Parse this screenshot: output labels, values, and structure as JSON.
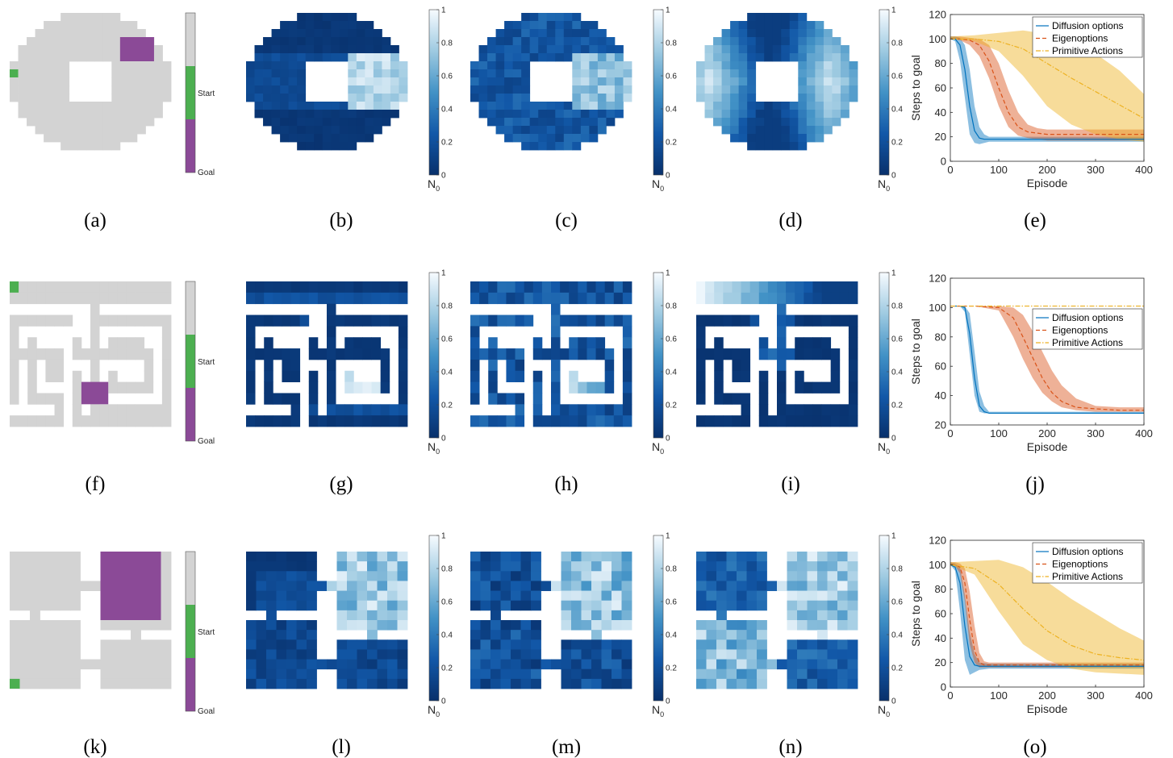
{
  "colors": {
    "wall": "#ffffff",
    "free": "#d3d3d3",
    "start": "#4caf50",
    "goal": "#8b4a97",
    "diffusion": "#0072bd",
    "eigen": "#d95319",
    "primitive": "#edb120"
  },
  "colorbar_label": "N",
  "colorbar_sub": "0",
  "legend_labels": {
    "start": "Start",
    "goal": "Goal"
  },
  "rows": [
    {
      "env": "ring",
      "captions": [
        "(a)",
        "(b)",
        "(c)",
        "(d)",
        "(e)"
      ]
    },
    {
      "env": "maze",
      "captions": [
        "(f)",
        "(g)",
        "(h)",
        "(i)",
        "(j)"
      ]
    },
    {
      "env": "rooms",
      "captions": [
        "(k)",
        "(l)",
        "(m)",
        "(n)",
        "(o)"
      ]
    }
  ],
  "chart_data": [
    {
      "type": "line",
      "xlabel": "Episode",
      "ylabel": "Steps to goal",
      "xlim": [
        0,
        400
      ],
      "ylim": [
        0,
        120
      ],
      "xticks": [
        0,
        100,
        200,
        300,
        400
      ],
      "yticks": [
        0,
        20,
        40,
        60,
        80,
        100,
        120
      ],
      "legend_position": "top-right",
      "series": [
        {
          "name": "Diffusion options",
          "style": "solid",
          "x": [
            0,
            10,
            20,
            30,
            40,
            50,
            60,
            70,
            80,
            100,
            150,
            200,
            300,
            400
          ],
          "y": [
            100,
            100,
            95,
            75,
            45,
            25,
            19,
            18,
            18,
            18,
            18,
            18,
            18,
            18
          ],
          "lower": [
            100,
            98,
            82,
            52,
            22,
            15,
            14,
            15,
            16,
            16,
            16,
            16,
            16,
            16
          ],
          "upper": [
            102,
            102,
            101,
            95,
            75,
            45,
            28,
            22,
            20,
            20,
            20,
            20,
            20,
            20
          ]
        },
        {
          "name": "Eigenoptions",
          "style": "dashed",
          "x": [
            0,
            20,
            40,
            60,
            80,
            100,
            120,
            140,
            160,
            180,
            200,
            250,
            300,
            400
          ],
          "y": [
            100,
            100,
            99,
            95,
            82,
            60,
            40,
            28,
            24,
            23,
            22,
            22,
            22,
            22
          ],
          "lower": [
            100,
            99,
            95,
            86,
            68,
            45,
            28,
            21,
            19,
            18,
            17,
            17,
            17,
            17
          ],
          "upper": [
            102,
            102,
            101,
            100,
            95,
            80,
            58,
            40,
            30,
            27,
            26,
            26,
            26,
            26
          ]
        },
        {
          "name": "Primitive Actions",
          "style": "dashdot",
          "x": [
            0,
            50,
            100,
            150,
            200,
            250,
            300,
            350,
            400
          ],
          "y": [
            100,
            100,
            98,
            92,
            80,
            68,
            57,
            46,
            35
          ],
          "lower": [
            100,
            98,
            90,
            70,
            45,
            30,
            22,
            18,
            16
          ],
          "upper": [
            102,
            103,
            105,
            107,
            104,
            97,
            88,
            74,
            55
          ]
        }
      ]
    },
    {
      "type": "line",
      "xlabel": "Episode",
      "ylabel": "Steps to goal",
      "xlim": [
        0,
        400
      ],
      "ylim": [
        20,
        120
      ],
      "xticks": [
        0,
        100,
        200,
        300,
        400
      ],
      "yticks": [
        20,
        40,
        60,
        80,
        100,
        120
      ],
      "legend_position": "right",
      "series": [
        {
          "name": "Diffusion options",
          "style": "solid",
          "x": [
            0,
            20,
            30,
            40,
            50,
            60,
            70,
            80,
            100,
            200,
            300,
            400
          ],
          "y": [
            101,
            101,
            100,
            82,
            52,
            33,
            29,
            28,
            28,
            28,
            28,
            28
          ],
          "lower": [
            101,
            101,
            97,
            68,
            40,
            29,
            28,
            28,
            28,
            28,
            28,
            28
          ],
          "upper": [
            101,
            101,
            101,
            96,
            70,
            43,
            33,
            29,
            29,
            29,
            29,
            29
          ]
        },
        {
          "name": "Eigenoptions",
          "style": "dashed",
          "x": [
            0,
            50,
            100,
            130,
            150,
            170,
            190,
            210,
            230,
            260,
            300,
            350,
            400
          ],
          "y": [
            101,
            101,
            100,
            93,
            80,
            66,
            52,
            42,
            36,
            32,
            31,
            30,
            30
          ],
          "lower": [
            101,
            101,
            98,
            80,
            65,
            52,
            42,
            36,
            32,
            30,
            29,
            29,
            29
          ],
          "upper": [
            101,
            101,
            101,
            100,
            95,
            84,
            70,
            57,
            47,
            38,
            33,
            32,
            32
          ]
        },
        {
          "name": "Primitive Actions",
          "style": "dashdot",
          "x": [
            0,
            100,
            200,
            300,
            400
          ],
          "y": [
            101,
            101,
            101,
            101,
            101
          ],
          "lower": [
            101,
            101,
            101,
            101,
            101
          ],
          "upper": [
            101,
            101,
            101,
            101,
            101
          ]
        }
      ]
    },
    {
      "type": "line",
      "xlabel": "Episode",
      "ylabel": "Steps to goal",
      "xlim": [
        0,
        400
      ],
      "ylim": [
        0,
        120
      ],
      "xticks": [
        0,
        100,
        200,
        300,
        400
      ],
      "yticks": [
        0,
        20,
        40,
        60,
        80,
        100,
        120
      ],
      "legend_position": "top-right",
      "series": [
        {
          "name": "Diffusion options",
          "style": "solid",
          "x": [
            0,
            10,
            20,
            30,
            40,
            50,
            60,
            80,
            100,
            200,
            300,
            400
          ],
          "y": [
            100,
            98,
            85,
            50,
            25,
            18,
            17,
            17,
            17,
            17,
            17,
            17
          ],
          "lower": [
            100,
            95,
            62,
            22,
            10,
            12,
            14,
            15,
            15,
            15,
            15,
            15
          ],
          "upper": [
            102,
            101,
            98,
            75,
            45,
            27,
            20,
            19,
            19,
            19,
            19,
            19
          ]
        },
        {
          "name": "Eigenoptions",
          "style": "dashed",
          "x": [
            0,
            10,
            20,
            30,
            40,
            50,
            60,
            70,
            80,
            100,
            200,
            300,
            400
          ],
          "y": [
            100,
            100,
            98,
            85,
            55,
            30,
            20,
            18,
            18,
            18,
            18,
            18,
            18
          ],
          "lower": [
            100,
            99,
            93,
            70,
            35,
            20,
            16,
            16,
            16,
            16,
            16,
            16,
            16
          ],
          "upper": [
            102,
            102,
            101,
            97,
            78,
            50,
            28,
            21,
            20,
            20,
            20,
            20,
            20
          ]
        },
        {
          "name": "Primitive Actions",
          "style": "dashdot",
          "x": [
            0,
            50,
            100,
            150,
            200,
            250,
            300,
            350,
            400
          ],
          "y": [
            100,
            97,
            84,
            64,
            46,
            34,
            27,
            24,
            22
          ],
          "lower": [
            100,
            92,
            62,
            35,
            22,
            15,
            12,
            11,
            10
          ],
          "upper": [
            102,
            103,
            104,
            98,
            86,
            72,
            60,
            48,
            38
          ]
        }
      ]
    }
  ]
}
